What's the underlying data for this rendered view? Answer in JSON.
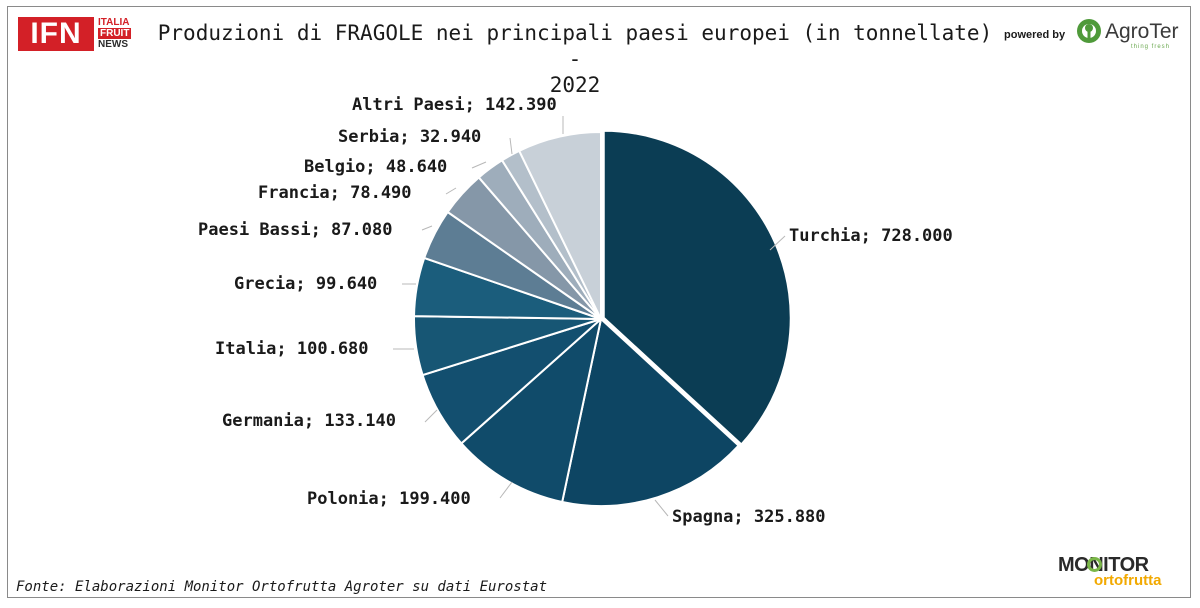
{
  "header": {
    "brand_ifn": "IFN",
    "brand_ifn_line1": "ITALIA",
    "brand_ifn_line2": "FRUIT",
    "brand_ifn_line3": "NEWS",
    "powered_by": "powered by",
    "brand_agroter": "AgroTer",
    "brand_agroter_tagline": "thing fresh"
  },
  "chart_data": {
    "type": "pie",
    "title_line1": "Produzioni di FRAGOLE nei principali paesi europei (in tonnellate) -",
    "title_line2": "2022",
    "slices": [
      {
        "label": "Turchia",
        "value": 728000,
        "display": "728.000",
        "color": "#0b3d54"
      },
      {
        "label": "Spagna",
        "value": 325880,
        "display": "325.880",
        "color": "#0d4563"
      },
      {
        "label": "Polonia",
        "value": 199400,
        "display": "199.400",
        "color": "#104b6a"
      },
      {
        "label": "Germania",
        "value": 133140,
        "display": "133.140",
        "color": "#134f6f"
      },
      {
        "label": "Italia",
        "value": 100680,
        "display": "100.680",
        "color": "#175674"
      },
      {
        "label": "Grecia",
        "value": 99640,
        "display": "99.640",
        "color": "#1b5d7c"
      },
      {
        "label": "Paesi Bassi",
        "value": 87080,
        "display": "87.080",
        "color": "#5d7d94"
      },
      {
        "label": "Francia",
        "value": 78490,
        "display": "78.490",
        "color": "#8597a8"
      },
      {
        "label": "Belgio",
        "value": 48640,
        "display": "48.640",
        "color": "#9eadbb"
      },
      {
        "label": "Serbia",
        "value": 32940,
        "display": "32.940",
        "color": "#b3bfca"
      },
      {
        "label": "Altri Paesi",
        "value": 142390,
        "display": "142.390",
        "color": "#c8d0d8"
      }
    ],
    "separator_color": "#ffffff",
    "leader_color": "#b8b8b8",
    "start_angle_deg": 0,
    "direction": "clockwise"
  },
  "footer": {
    "source": "Fonte: Elaborazioni Monitor Ortofrutta Agroter su dati Eurostat",
    "brand_monitor": "MONITOR",
    "brand_monitor_sub": "ortofrutta"
  }
}
